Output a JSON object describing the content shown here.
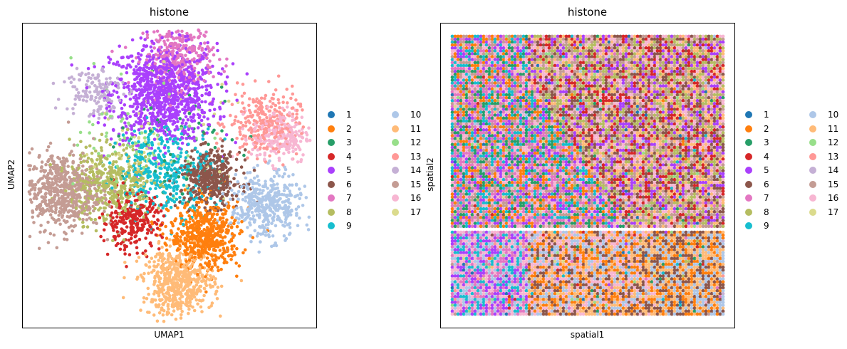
{
  "palette": {
    "1": "#1f77b4",
    "2": "#ff7f0e",
    "3": "#279e68",
    "4": "#d62728",
    "5": "#aa40fc",
    "6": "#8c564b",
    "7": "#e377c2",
    "8": "#b5bd61",
    "9": "#17becf",
    "10": "#aec7e8",
    "11": "#ffbb78",
    "12": "#98df8a",
    "13": "#ff9896",
    "14": "#c5b0d5",
    "15": "#c49c94",
    "16": "#f7b6d2",
    "17": "#dbdb8d"
  },
  "chart_data": [
    {
      "type": "scatter",
      "title": "histone",
      "xlabel": "UMAP1",
      "ylabel": "UMAP2",
      "grid": false,
      "ticks": false,
      "legend_position": "right",
      "legend_title": "",
      "legend": [
        "1",
        "2",
        "3",
        "4",
        "5",
        "6",
        "7",
        "8",
        "9",
        "10",
        "11",
        "12",
        "13",
        "14",
        "15",
        "16",
        "17"
      ],
      "cluster_centers": [
        {
          "cluster": "5",
          "x": 0.48,
          "y": 0.77,
          "spread": 0.09,
          "weight": 14
        },
        {
          "cluster": "7",
          "x": 0.53,
          "y": 0.9,
          "spread": 0.06,
          "weight": 4
        },
        {
          "cluster": "13",
          "x": 0.82,
          "y": 0.67,
          "spread": 0.06,
          "weight": 4
        },
        {
          "cluster": "16",
          "x": 0.88,
          "y": 0.63,
          "spread": 0.05,
          "weight": 3
        },
        {
          "cluster": "15",
          "x": 0.13,
          "y": 0.45,
          "spread": 0.07,
          "weight": 9
        },
        {
          "cluster": "8",
          "x": 0.3,
          "y": 0.48,
          "spread": 0.07,
          "weight": 6
        },
        {
          "cluster": "6",
          "x": 0.64,
          "y": 0.49,
          "spread": 0.05,
          "weight": 6
        },
        {
          "cluster": "10",
          "x": 0.83,
          "y": 0.4,
          "spread": 0.06,
          "weight": 6
        },
        {
          "cluster": "9",
          "x": 0.49,
          "y": 0.52,
          "spread": 0.08,
          "weight": 5
        },
        {
          "cluster": "4",
          "x": 0.37,
          "y": 0.35,
          "spread": 0.05,
          "weight": 4
        },
        {
          "cluster": "2",
          "x": 0.62,
          "y": 0.3,
          "spread": 0.06,
          "weight": 8
        },
        {
          "cluster": "11",
          "x": 0.53,
          "y": 0.15,
          "spread": 0.06,
          "weight": 8
        },
        {
          "cluster": "14",
          "x": 0.24,
          "y": 0.78,
          "spread": 0.05,
          "weight": 2
        },
        {
          "cluster": "3",
          "x": 0.52,
          "y": 0.6,
          "spread": 0.12,
          "weight": 1
        },
        {
          "cluster": "12",
          "x": 0.4,
          "y": 0.6,
          "spread": 0.1,
          "weight": 1
        },
        {
          "cluster": "17",
          "x": 0.45,
          "y": 0.62,
          "spread": 0.12,
          "weight": 1
        }
      ]
    },
    {
      "type": "scatter",
      "title": "histone",
      "xlabel": "spatial1",
      "ylabel": "spatial2",
      "grid": false,
      "ticks": false,
      "legend_position": "right",
      "legend_title": "",
      "legend": [
        "1",
        "2",
        "3",
        "4",
        "5",
        "6",
        "7",
        "8",
        "9",
        "10",
        "11",
        "12",
        "13",
        "14",
        "15",
        "16",
        "17"
      ],
      "grid_spots": {
        "columns": 96,
        "rows": 96,
        "gap_row_fraction": 0.69
      },
      "regions": [
        {
          "name": "upper-left",
          "clusters": [
            "5",
            "7",
            "16",
            "9",
            "3",
            "2",
            "15"
          ]
        },
        {
          "name": "upper-right",
          "clusters": [
            "15",
            "8",
            "4",
            "6",
            "11",
            "5",
            "16"
          ]
        },
        {
          "name": "lower-left",
          "clusters": [
            "5",
            "7",
            "16",
            "10",
            "9"
          ]
        },
        {
          "name": "lower-middle",
          "clusters": [
            "6",
            "10",
            "11",
            "2",
            "16"
          ]
        },
        {
          "name": "lower-right",
          "clusters": [
            "6",
            "11",
            "2",
            "10"
          ]
        }
      ]
    }
  ]
}
